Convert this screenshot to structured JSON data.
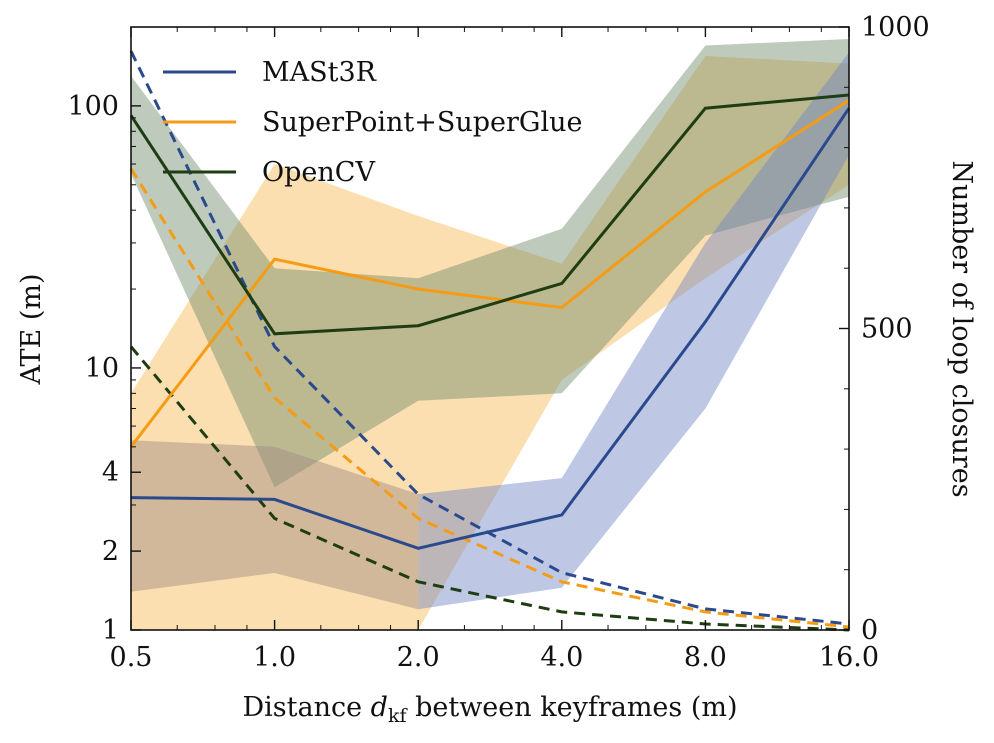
{
  "chart_data": {
    "type": "line",
    "x": [
      0.5,
      1.0,
      2.0,
      4.0,
      8.0,
      16.0
    ],
    "x_tick_labels": [
      "0.5",
      "1.0",
      "2.0",
      "4.0",
      "8.0",
      "16.0"
    ],
    "xscale": "log2",
    "xlabel_prefix": "Distance ",
    "xlabel_var": "d",
    "xlabel_sub": "kf",
    "xlabel_suffix": " between keyframes (m)",
    "ylabel": "ATE (m)",
    "yscale": "log10",
    "ylim": [
      1,
      200
    ],
    "y_tick_values": [
      1,
      2,
      4,
      10,
      100
    ],
    "y_tick_labels": [
      "1",
      "2",
      "4",
      "10",
      "100"
    ],
    "y2label": "Number of loop closures",
    "y2lim": [
      0,
      1000
    ],
    "y2_tick_values": [
      0,
      500,
      1000
    ],
    "y2_tick_labels": [
      "0",
      "500",
      "1000"
    ],
    "legend_position": "top-left",
    "series": [
      {
        "name": "MASt3R",
        "color": "#2b4a8d",
        "fill": "#6f86c6",
        "ate_mean": [
          3.2,
          3.15,
          2.05,
          2.75,
          15.0,
          98.0
        ],
        "ate_lower": [
          1.4,
          1.65,
          1.2,
          1.45,
          7.0,
          65.0
        ],
        "ate_upper": [
          5.3,
          null,
          3.3,
          3.8,
          30.0,
          160.0
        ],
        "loop_closures": [
          960,
          470,
          225,
          95,
          35,
          10
        ]
      },
      {
        "name": "SuperPoint+SuperGlue",
        "color": "#f59c14",
        "fill": "#f9b84f",
        "ate_mean": [
          5.0,
          26.0,
          20.0,
          17.0,
          47.0,
          105.0
        ],
        "ate_lower": [
          1.0,
          1.0,
          1.0,
          9.0,
          22.0,
          50.0
        ],
        "ate_upper": [
          8.0,
          60.0,
          38.0,
          25.0,
          155.0,
          145.0
        ],
        "loop_closures": [
          765,
          385,
          185,
          80,
          30,
          5
        ]
      },
      {
        "name": "OpenCV",
        "color": "#1e3d12",
        "fill": "#6e8a6b",
        "ate_mean": [
          92.0,
          13.5,
          14.5,
          21.0,
          98.0,
          110.0
        ],
        "ate_lower": [
          55.0,
          3.5,
          7.5,
          8.0,
          32.0,
          45.0
        ],
        "ate_upper": [
          130.0,
          24.0,
          22.0,
          34.0,
          170.0,
          180.0
        ],
        "loop_closures": [
          470,
          185,
          80,
          30,
          10,
          0
        ]
      }
    ],
    "extra_bands": [
      {
        "color": "#6f86c6",
        "upper": [
          5.3,
          5.0,
          3.3,
          3.8,
          30.0,
          160.0
        ],
        "lower": [
          1.4,
          1.65,
          1.2,
          1.45,
          7.0,
          65.0
        ]
      }
    ]
  }
}
